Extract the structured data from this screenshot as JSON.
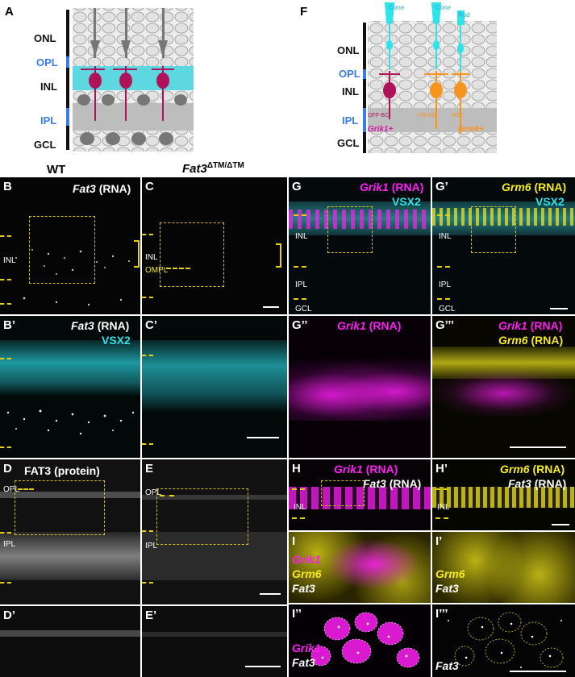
{
  "panels": {
    "A": "A",
    "F": "F",
    "B": "B",
    "C": "C",
    "Bp": "B’",
    "Cp": "C’",
    "D": "D",
    "E": "E",
    "Dp": "D’",
    "Ep": "E’",
    "G": "G",
    "Gp": "G’",
    "Gpp": "G’’",
    "Gppp": "G’’’",
    "H": "H",
    "Hp": "H’",
    "I": "I",
    "Ip": "I’",
    "Ipp": "I’’",
    "Ippp": "I’’’"
  },
  "schematic_A": {
    "layers": [
      "ONL",
      "OPL",
      "INL",
      "IPL",
      "GCL"
    ]
  },
  "schematic_F": {
    "layers": [
      "ONL",
      "OPL",
      "INL",
      "IPL",
      "GCL"
    ],
    "cells": [
      "Cone",
      "Cone",
      "Rod"
    ],
    "bipolar": [
      "OFF-BC",
      "ON-BC",
      "RBC"
    ],
    "markers": [
      "Grik1+",
      "Grm6+"
    ]
  },
  "headers": {
    "wt": "WT",
    "mutant_gene": "Fat3",
    "mutant_sup": "ΔTM/ΔTM"
  },
  "labels": {
    "fat3": "Fat3",
    "rna": "(RNA)",
    "vsx2": "VSX2",
    "fat3_protein": "FAT3 (protein)",
    "grik1": "Grik1",
    "grm6": "Grm6",
    "inl": "INL",
    "ipl": "IPL",
    "gcl": "GCL",
    "opl": "OPL",
    "ompl": "OMPL"
  },
  "colors": {
    "magenta": "#ff1cf5",
    "yellow": "#f7ec1d",
    "cyan": "#2ee3ea",
    "bipolar_magenta": "#b0125a",
    "bipolar_orange": "#f7941d",
    "layer_blue": "#3b7be8"
  }
}
